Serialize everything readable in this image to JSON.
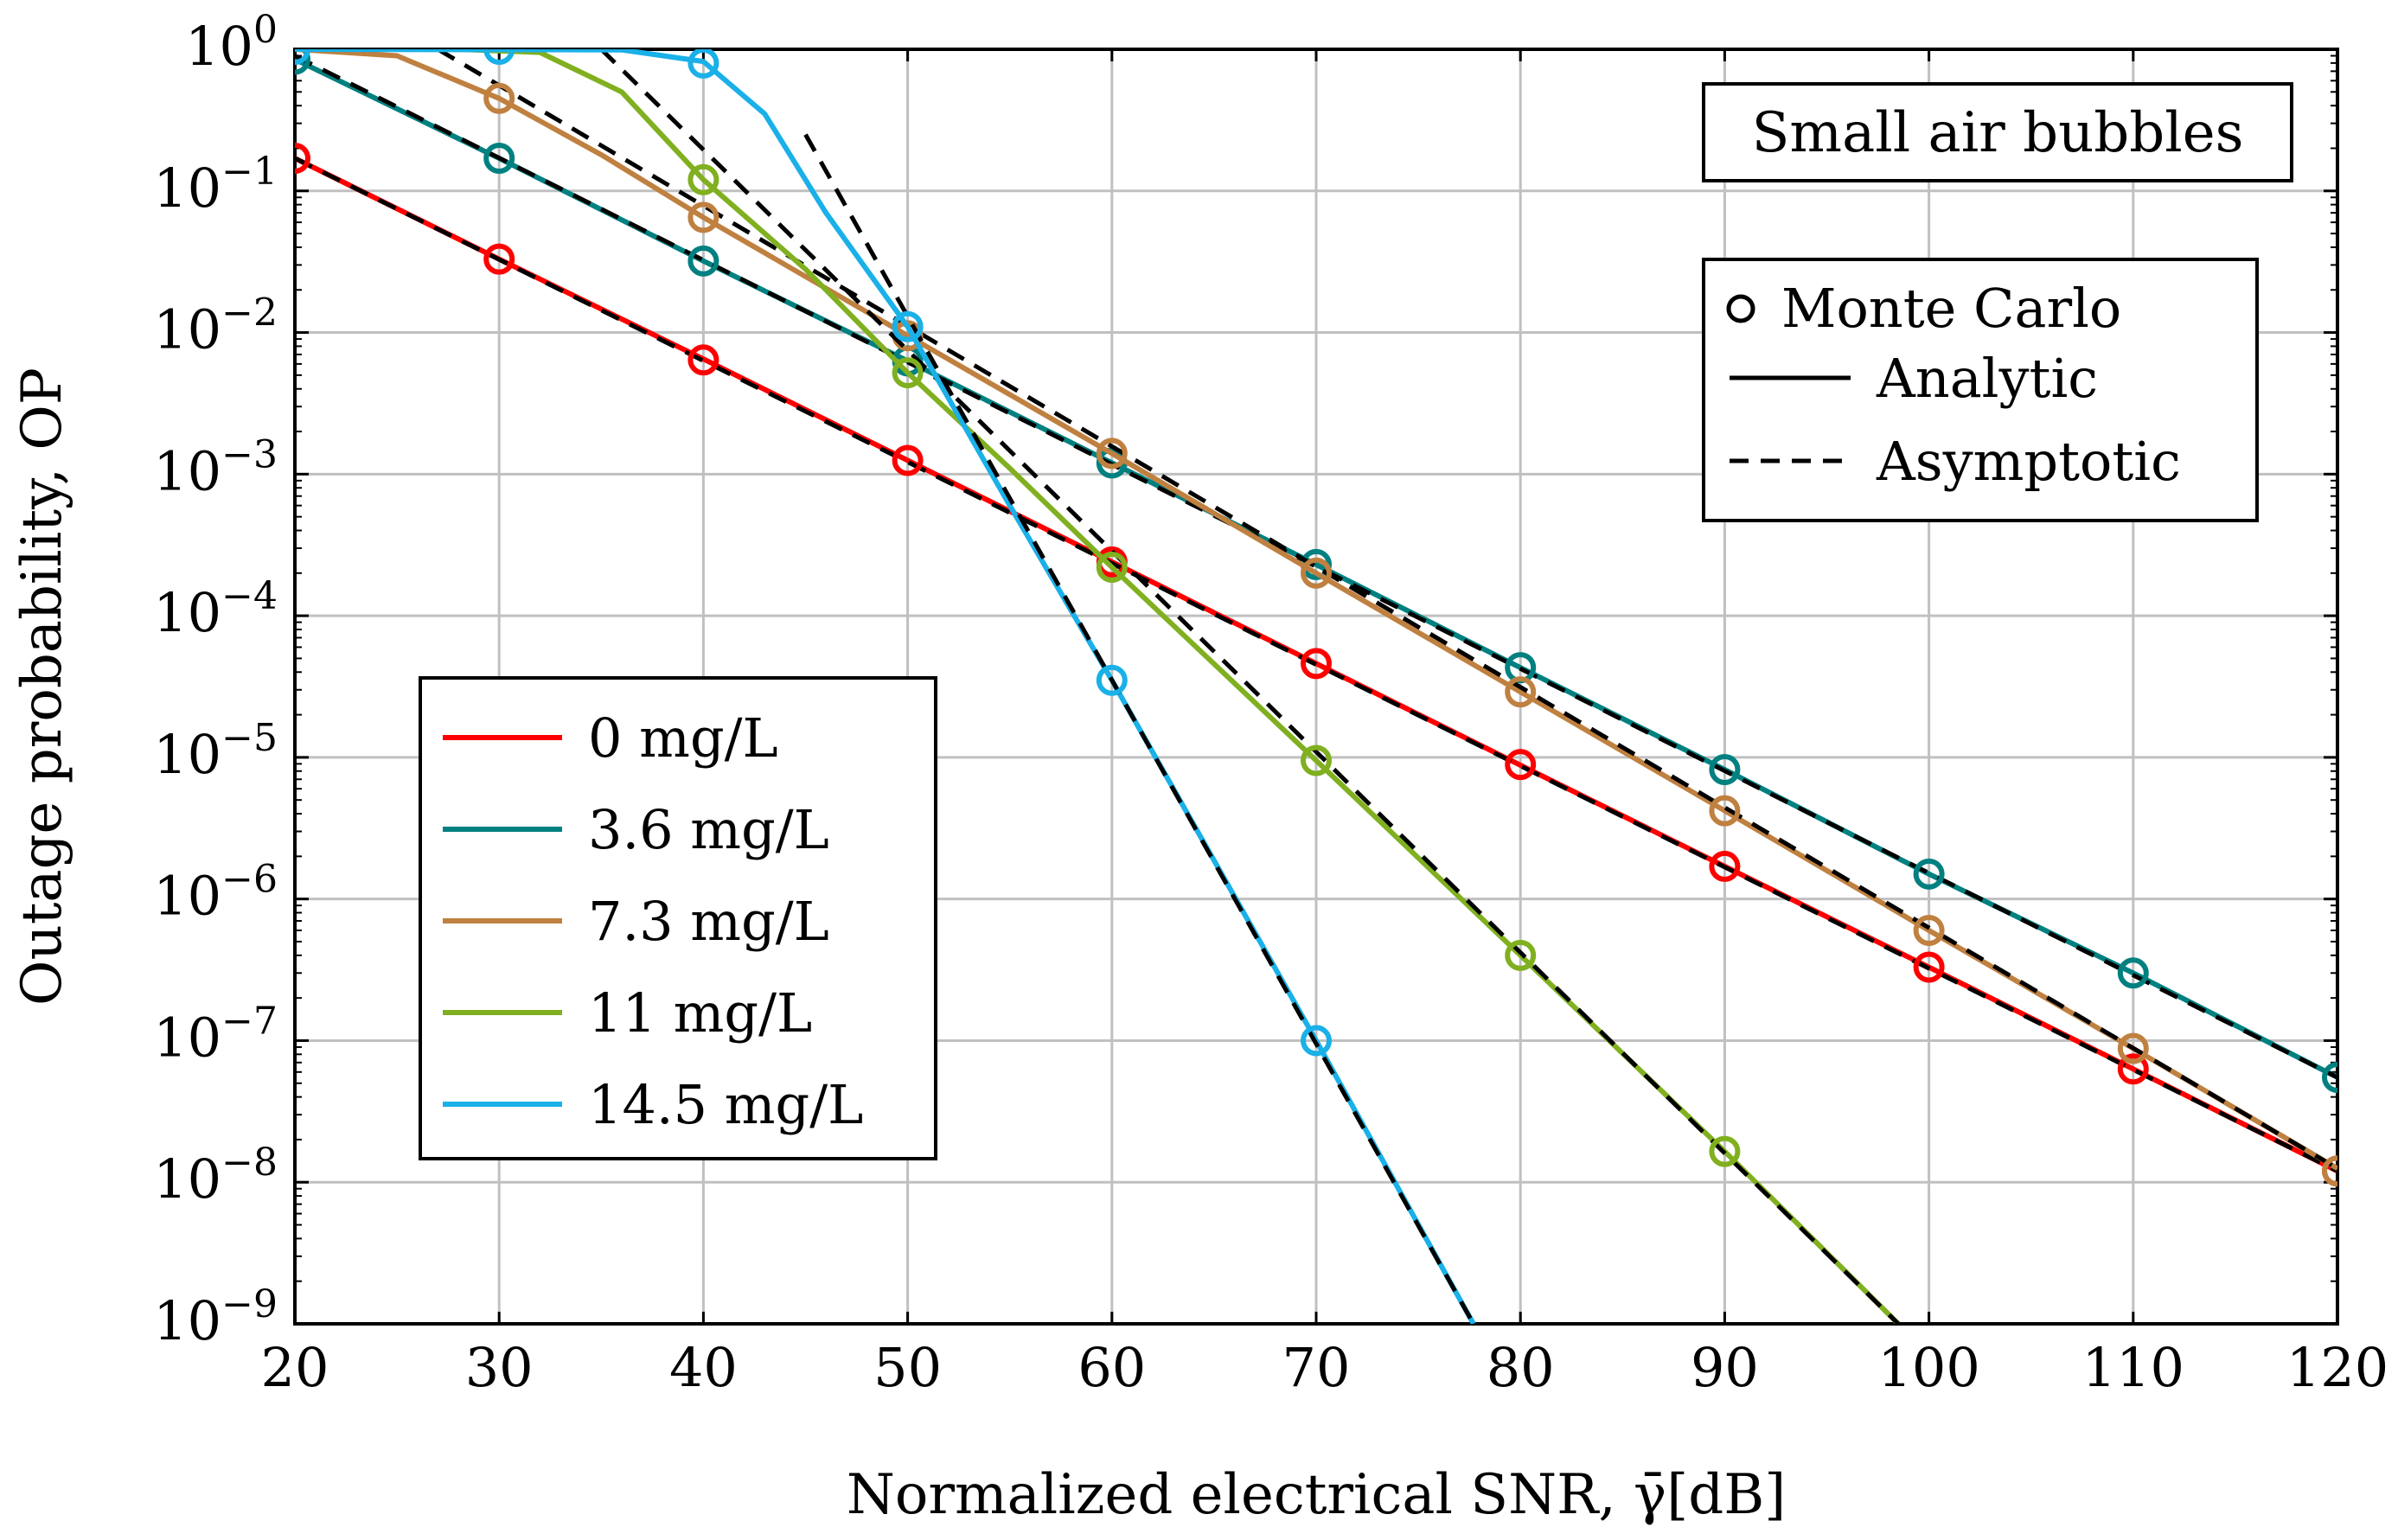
{
  "chart_data": {
    "type": "line",
    "title": "",
    "annotation": "Small air bubbles",
    "xlabel": "Normalized electrical SNR, γ̄[dB]",
    "ylabel": "Outage probability, OP",
    "xlim": [
      20,
      120
    ],
    "ylim": [
      1e-09,
      1
    ],
    "y_scale": "log",
    "grid": true,
    "x_ticks": [
      20,
      30,
      40,
      50,
      60,
      70,
      80,
      90,
      100,
      110,
      120
    ],
    "x_tick_labels": [
      "20",
      "30",
      "40",
      "50",
      "60",
      "70",
      "80",
      "90",
      "100",
      "110",
      "120"
    ],
    "y_ticks": [
      {
        "exp": 0,
        "base": "10",
        "sup": "0"
      },
      {
        "exp": -1,
        "base": "10",
        "sup": "−1"
      },
      {
        "exp": -2,
        "base": "10",
        "sup": "−2"
      },
      {
        "exp": -3,
        "base": "10",
        "sup": "−3"
      },
      {
        "exp": -4,
        "base": "10",
        "sup": "−4"
      },
      {
        "exp": -5,
        "base": "10",
        "sup": "−5"
      },
      {
        "exp": -6,
        "base": "10",
        "sup": "−6"
      },
      {
        "exp": -7,
        "base": "10",
        "sup": "−7"
      },
      {
        "exp": -8,
        "base": "10",
        "sup": "−8"
      },
      {
        "exp": -9,
        "base": "10",
        "sup": "−9"
      }
    ],
    "legend_series_position": "center-left",
    "legend_markers_position": "top-right",
    "legend_markers": [
      "Monte Carlo",
      "Analytic",
      "Asymptotic"
    ],
    "series": [
      {
        "name": "0 mg/L",
        "color": "#ff0000",
        "analytic": {
          "x": [
            20,
            30,
            40,
            50,
            60,
            70,
            80,
            90,
            100,
            110,
            120
          ],
          "y": [
            0.17,
            0.033,
            0.0065,
            0.00125,
            0.00024,
            4.6e-05,
            8.8e-06,
            1.7e-06,
            3.3e-07,
            6.3e-08,
            1.2e-08
          ]
        },
        "asymptotic": {
          "x": [
            20,
            120
          ],
          "y": [
            0.17,
            1.2e-08
          ]
        },
        "monte_carlo": {
          "x": [
            20,
            30,
            40,
            50,
            60,
            70,
            80,
            90,
            100,
            110,
            120
          ],
          "y": [
            0.17,
            0.033,
            0.0064,
            0.00125,
            0.00024,
            4.6e-05,
            8.9e-06,
            1.7e-06,
            3.3e-07,
            6.3e-08,
            1.2e-08
          ]
        }
      },
      {
        "name": "3.6 mg/L",
        "color": "#008080",
        "analytic": {
          "x": [
            20,
            30,
            40,
            50,
            60,
            70,
            80,
            90,
            100,
            110,
            120
          ],
          "y": [
            0.85,
            0.17,
            0.032,
            0.0063,
            0.0012,
            0.00023,
            4.3e-05,
            8.2e-06,
            1.5e-06,
            3e-07,
            5.5e-08
          ]
        },
        "asymptotic": {
          "x": [
            20,
            120
          ],
          "y": [
            0.9,
            5.5e-08
          ]
        },
        "monte_carlo": {
          "x": [
            20,
            30,
            40,
            50,
            60,
            70,
            80,
            90,
            100,
            110,
            120
          ],
          "y": [
            0.85,
            0.17,
            0.032,
            0.0063,
            0.0012,
            0.00023,
            4.3e-05,
            8.2e-06,
            1.5e-06,
            3e-07,
            5.5e-08
          ]
        }
      },
      {
        "name": "7.3 mg/L",
        "color": "#bf8040",
        "analytic": {
          "x": [
            20,
            25,
            30,
            35,
            40,
            50,
            60,
            70,
            80,
            90,
            100,
            110,
            120
          ],
          "y": [
            1.0,
            0.9,
            0.45,
            0.18,
            0.065,
            0.0095,
            0.0014,
            0.0002,
            2.9e-05,
            4.2e-06,
            6e-07,
            8.8e-08,
            1.25e-08
          ]
        },
        "asymptotic": {
          "x": [
            27,
            120
          ],
          "y": [
            1.0,
            1.25e-08
          ]
        },
        "monte_carlo": {
          "x": [
            30,
            40,
            50,
            60,
            70,
            80,
            90,
            100,
            110,
            120
          ],
          "y": [
            0.45,
            0.065,
            0.0095,
            0.0014,
            0.0002,
            2.9e-05,
            4.2e-06,
            6e-07,
            8.8e-08,
            1.2e-08
          ]
        }
      },
      {
        "name": "11 mg/L",
        "color": "#80b020",
        "analytic": {
          "x": [
            20,
            28,
            32,
            36,
            40,
            45,
            50,
            55,
            60,
            70,
            80,
            90,
            98.5
          ],
          "y": [
            1.0,
            1.0,
            0.95,
            0.5,
            0.12,
            0.028,
            0.0052,
            0.0011,
            0.00022,
            9.5e-06,
            4e-07,
            1.65e-08,
            1e-09
          ]
        },
        "asymptotic": {
          "x": [
            35,
            98.5
          ],
          "y": [
            1.0,
            1e-09
          ]
        },
        "monte_carlo": {
          "x": [
            40,
            50,
            60,
            70,
            80,
            90
          ],
          "y": [
            0.12,
            0.0052,
            0.00022,
            9.5e-06,
            4e-07,
            1.65e-08
          ]
        }
      },
      {
        "name": "14.5 mg/L",
        "color": "#1ab0e8",
        "analytic": {
          "x": [
            20,
            36,
            40,
            43,
            46,
            50,
            55,
            60,
            70,
            77.7
          ],
          "y": [
            1.0,
            0.99,
            0.82,
            0.35,
            0.07,
            0.011,
            0.0006,
            3.5e-05,
            1e-07,
            1e-09
          ]
        },
        "asymptotic": {
          "x": [
            45,
            77.7
          ],
          "y": [
            0.25,
            1e-09
          ]
        },
        "monte_carlo": {
          "x": [
            20,
            30,
            40,
            50,
            60,
            70
          ],
          "y": [
            1.0,
            1.0,
            0.8,
            0.011,
            3.5e-05,
            1e-07
          ]
        }
      }
    ]
  }
}
